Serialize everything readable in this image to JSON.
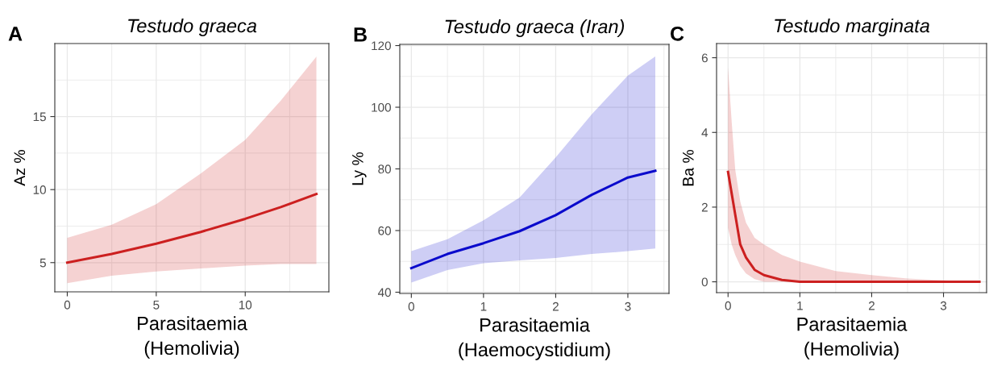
{
  "chart_data": [
    {
      "type": "line",
      "title": "Testudo graeca",
      "xlabel": "Parasitaemia\n(Hemolivia)",
      "ylabel": "Az %",
      "annotations": [
        "A"
      ],
      "xlim": [
        -0.7,
        14.7
      ],
      "xticks": [
        0,
        5,
        10
      ],
      "ylim": [
        3,
        20
      ],
      "yticks": [
        5,
        10,
        15
      ],
      "grid": true,
      "legend": false,
      "series": [
        {
          "color": "#cc2020",
          "x": [
            0,
            2.5,
            5,
            7.5,
            10,
            12,
            14
          ],
          "values": [
            5.0,
            5.6,
            6.3,
            7.1,
            8.0,
            8.8,
            9.7
          ],
          "lower": [
            3.6,
            4.1,
            4.4,
            4.6,
            4.8,
            4.9,
            4.9
          ],
          "upper": [
            6.7,
            7.6,
            9.0,
            11.1,
            13.4,
            16.1,
            19.1
          ]
        }
      ]
    },
    {
      "type": "line",
      "title": "Testudo graeca (Iran)",
      "xlabel": "Parasitaemia\n(Haemocystidium)",
      "ylabel": "Ly %",
      "annotations": [
        "B"
      ],
      "xlim": [
        -0.16,
        3.57
      ],
      "xticks": [
        0,
        1,
        2,
        3
      ],
      "ylim": [
        39.6,
        120.4
      ],
      "yticks": [
        40,
        60,
        80,
        100,
        120
      ],
      "grid": true,
      "legend": false,
      "series": [
        {
          "color": "#0a0acc",
          "x": [
            0,
            0.5,
            1,
            1.5,
            2,
            2.5,
            3,
            3.38
          ],
          "values": [
            47.8,
            52.4,
            55.9,
            59.8,
            65.0,
            71.6,
            77.2,
            79.4
          ],
          "lower": [
            43.1,
            47.2,
            49.4,
            50.3,
            51.1,
            52.4,
            53.3,
            54.2
          ],
          "upper": [
            53.3,
            57.2,
            63.3,
            70.7,
            83.7,
            97.7,
            110.3,
            116.5
          ]
        }
      ]
    },
    {
      "type": "line",
      "title": "Testudo marginata",
      "xlabel": "Parasitaemia\n(Hemolivia)",
      "ylabel": "Ba %",
      "annotations": [
        "C"
      ],
      "xlim": [
        -0.16,
        3.6
      ],
      "xticks": [
        0,
        1,
        2,
        3
      ],
      "ylim": [
        -0.29,
        6.38
      ],
      "yticks": [
        0,
        2,
        4,
        6
      ],
      "grid": true,
      "legend": false,
      "series": [
        {
          "color": "#cc2020",
          "x": [
            0,
            0.05,
            0.1,
            0.17,
            0.25,
            0.37,
            0.5,
            0.75,
            1.0,
            1.5,
            2.0,
            2.5,
            3.0,
            3.5
          ],
          "values": [
            2.94,
            2.37,
            1.8,
            1.0,
            0.65,
            0.32,
            0.18,
            0.05,
            0,
            0,
            0,
            0,
            0,
            0
          ],
          "lower": [
            1.44,
            1.0,
            0.72,
            0.43,
            0.22,
            0.07,
            0,
            0,
            0,
            0,
            0,
            0,
            0,
            0
          ],
          "upper": [
            5.74,
            4.3,
            3.0,
            2.15,
            1.58,
            1.18,
            1.0,
            0.72,
            0.54,
            0.29,
            0.18,
            0.09,
            0.04,
            0
          ]
        }
      ]
    }
  ]
}
